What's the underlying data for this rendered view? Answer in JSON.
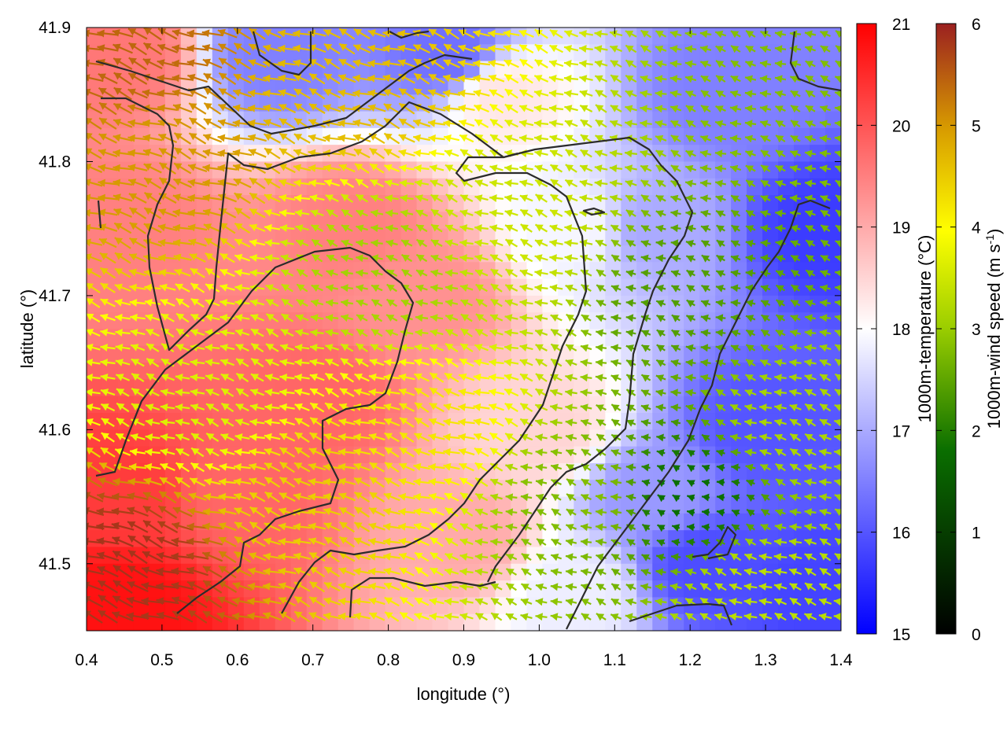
{
  "chart_data": {
    "type": "heatmap",
    "title": "",
    "xlabel": "longitude (°)",
    "ylabel": "latitude (°)",
    "xlim": [
      0.4,
      1.4
    ],
    "ylim": [
      41.45,
      41.9
    ],
    "x_ticks": [
      "0.4",
      "0.5",
      "0.6",
      "0.7",
      "0.8",
      "0.9",
      "1.0",
      "1.1",
      "1.2",
      "1.3",
      "1.4"
    ],
    "y_ticks": [
      "41.5",
      "41.6",
      "41.7",
      "41.8",
      "41.9"
    ],
    "grid": false,
    "temperature_colorbar": {
      "label": "1000m-temperature (°C)",
      "range": [
        15,
        21
      ],
      "ticks": [
        "15",
        "16",
        "17",
        "18",
        "19",
        "20",
        "21"
      ],
      "colors": [
        "#0000ff",
        "#ffffff",
        "#ff0000"
      ]
    },
    "wind_colorbar": {
      "label_main": "1000m-wind speed (m s",
      "label_sup": "-1",
      "label_end": ")",
      "range": [
        0,
        6
      ],
      "ticks": [
        "0",
        "1",
        "2",
        "3",
        "4",
        "5",
        "6"
      ],
      "colors": [
        "#000000",
        "#0a6e00",
        "#9acd00",
        "#ffff00",
        "#d79a00",
        "#9b2020"
      ]
    },
    "temperature_field_samples": [
      {
        "lon": 0.45,
        "lat": 41.47,
        "t": 20.8
      },
      {
        "lon": 0.45,
        "lat": 41.55,
        "t": 20.3
      },
      {
        "lon": 0.45,
        "lat": 41.75,
        "t": 19.5
      },
      {
        "lon": 0.45,
        "lat": 41.88,
        "t": 19.6
      },
      {
        "lon": 0.6,
        "lat": 41.55,
        "t": 19.8
      },
      {
        "lon": 0.7,
        "lat": 41.62,
        "t": 19.8
      },
      {
        "lon": 0.75,
        "lat": 41.75,
        "t": 19.5
      },
      {
        "lon": 0.85,
        "lat": 41.7,
        "t": 19.3
      },
      {
        "lon": 0.9,
        "lat": 41.52,
        "t": 19.0
      },
      {
        "lon": 0.95,
        "lat": 41.85,
        "t": 18.3
      },
      {
        "lon": 1.0,
        "lat": 41.6,
        "t": 18.5
      },
      {
        "lon": 1.05,
        "lat": 41.75,
        "t": 17.9
      },
      {
        "lon": 1.05,
        "lat": 41.48,
        "t": 17.8
      },
      {
        "lon": 1.15,
        "lat": 41.75,
        "t": 17.0
      },
      {
        "lon": 1.15,
        "lat": 41.55,
        "t": 16.8
      },
      {
        "lon": 1.22,
        "lat": 41.5,
        "t": 15.9
      },
      {
        "lon": 1.25,
        "lat": 41.85,
        "t": 16.5
      },
      {
        "lon": 1.3,
        "lat": 41.6,
        "t": 16.0
      },
      {
        "lon": 1.38,
        "lat": 41.75,
        "t": 15.7
      },
      {
        "lon": 1.38,
        "lat": 41.48,
        "t": 15.8
      },
      {
        "lon": 0.65,
        "lat": 41.88,
        "t": 16.5
      },
      {
        "lon": 0.88,
        "lat": 41.88,
        "t": 16.3
      }
    ],
    "wind_field_samples": [
      {
        "lon": 0.45,
        "lat": 41.5,
        "speed": 5.8
      },
      {
        "lon": 0.45,
        "lat": 41.88,
        "speed": 5.3
      },
      {
        "lon": 0.5,
        "lat": 41.8,
        "speed": 4.8
      },
      {
        "lon": 0.55,
        "lat": 41.62,
        "speed": 3.2
      },
      {
        "lon": 0.7,
        "lat": 41.55,
        "speed": 4.2
      },
      {
        "lon": 0.75,
        "lat": 41.85,
        "speed": 4.4
      },
      {
        "lon": 0.8,
        "lat": 41.72,
        "speed": 2.5
      },
      {
        "lon": 0.85,
        "lat": 41.6,
        "speed": 3.9
      },
      {
        "lon": 0.95,
        "lat": 41.75,
        "speed": 3.0
      },
      {
        "lon": 1.05,
        "lat": 41.55,
        "speed": 2.2
      },
      {
        "lon": 1.2,
        "lat": 41.7,
        "speed": 1.8
      },
      {
        "lon": 1.2,
        "lat": 41.55,
        "speed": 1.2
      },
      {
        "lon": 1.35,
        "lat": 41.85,
        "speed": 2.2
      },
      {
        "lon": 1.3,
        "lat": 41.48,
        "speed": 2.8
      },
      {
        "lon": 1.35,
        "lat": 41.6,
        "speed": 2.6
      }
    ]
  }
}
